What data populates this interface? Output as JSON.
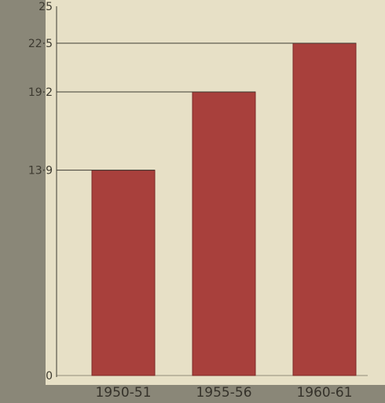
{
  "chart_data": {
    "type": "bar",
    "categories": [
      "1950-51",
      "1955-56",
      "1960-61"
    ],
    "values": [
      13.9,
      19.2,
      22.5
    ],
    "value_labels": [
      "13·9",
      "19·2",
      "22·5"
    ],
    "axis_ticks": [
      {
        "value": 25,
        "label": "25"
      },
      {
        "value": 0,
        "label": "0"
      }
    ],
    "title": "",
    "xlabel": "",
    "ylabel": "",
    "ylim": [
      0,
      25
    ],
    "grid": false,
    "colors": {
      "bar": "#a8403c",
      "bar_edge": "#7e2a28",
      "paper": "#e7e0c6",
      "frame": "#8a8778",
      "line": "#3e3b33"
    }
  }
}
